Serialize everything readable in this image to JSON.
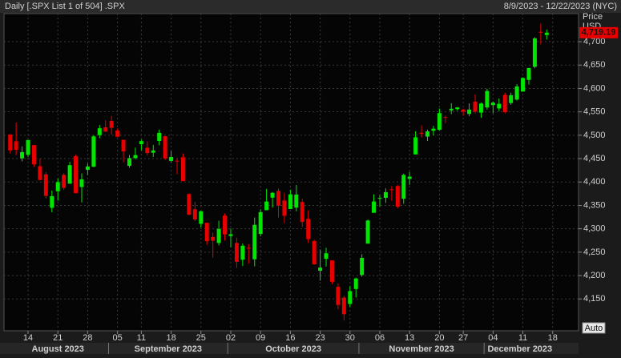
{
  "chart_data": {
    "type": "candlestick",
    "title": "Daily [.SPX List 1 of 504] .SPX",
    "subtitle": "8/9/2023 - 12/22/2023 (NYC)",
    "y_axis_label": "Price",
    "y_axis_unit": "USD",
    "button": "Auto",
    "up_color": "#00e600",
    "down_color": "#e60000",
    "grid": true,
    "ylim": [
      4082,
      4760
    ],
    "yticks": [
      {
        "value": 4150,
        "label": "4,150"
      },
      {
        "value": 4200,
        "label": "4,200"
      },
      {
        "value": 4250,
        "label": "4,250"
      },
      {
        "value": 4300,
        "label": "4,300"
      },
      {
        "value": 4350,
        "label": "4,350"
      },
      {
        "value": 4400,
        "label": "4,400"
      },
      {
        "value": 4450,
        "label": "4,450"
      },
      {
        "value": 4500,
        "label": "4,500"
      },
      {
        "value": 4550,
        "label": "4,550"
      },
      {
        "value": 4600,
        "label": "4,600"
      },
      {
        "value": 4650,
        "label": "4,650"
      },
      {
        "value": 4700,
        "label": "4,700"
      }
    ],
    "last_price": {
      "value": 4719.19,
      "label": "4,719.19"
    },
    "months": [
      {
        "label": "August 2023",
        "days": [
          null,
          null,
          null,
          "14",
          null,
          null,
          null,
          null,
          "21",
          null,
          null,
          null,
          null,
          "28",
          null,
          null,
          null
        ]
      },
      {
        "label": "September 2023",
        "days": [
          null,
          "05",
          null,
          null,
          null,
          "11",
          null,
          null,
          null,
          null,
          "18",
          null,
          null,
          null,
          null,
          "25",
          null,
          null,
          null,
          null
        ]
      },
      {
        "label": "October 2023",
        "days": [
          "02",
          null,
          null,
          null,
          null,
          "09",
          null,
          null,
          null,
          null,
          "16",
          null,
          null,
          null,
          null,
          "23",
          null,
          null,
          null,
          null,
          "30",
          null
        ]
      },
      {
        "label": "November 2023",
        "days": [
          null,
          null,
          null,
          "06",
          null,
          null,
          null,
          null,
          "13",
          null,
          null,
          null,
          null,
          "20",
          null,
          null,
          null,
          "27",
          null,
          null,
          null
        ]
      },
      {
        "label": "December 2023",
        "days": [
          null,
          "04",
          null,
          null,
          null,
          null,
          "11",
          null,
          null,
          null,
          null,
          "18"
        ]
      }
    ],
    "open": [
      4501.57,
      4487.16,
      4450.69,
      4458.13,
      4478.87,
      4433.79,
      4416.32,
      4344.88,
      4380.28,
      4415.33,
      4396.44,
      4455.16,
      4389.38,
      4426.03,
      4432.75,
      4500.34,
      4517.01,
      4530.6,
      4510.06,
      4490.35,
      4434.55,
      4451.3,
      4480.98,
      4473.27,
      4462.65,
      4487.78,
      4497.98,
      4445.13,
      4445.41,
      4452.81,
      4374.36,
      4341.74,
      4310.62,
      4312.88,
      4282.63,
      4269.65,
      4328.18,
      4284.52,
      4269.75,
      4233.83,
      4259.31,
      4234.79,
      4289.02,
      4339.75,
      4366.59,
      4380.94,
      4360.49,
      4342.37,
      4345.23,
      4357.35,
      4321.36,
      4273.85,
      4210.4,
      4235.79,
      4232.42,
      4175.99,
      4152.93,
      4139.39,
      4171.33,
      4201.27,
      4268.26,
      4334.23,
      4364.27,
      4366.21,
      4384.37,
      4391.41,
      4364.15,
      4406.66,
      4458.97,
      4505.3,
      4497.08,
      4509.55,
      4511.7,
      4538.77,
      4553.04,
      4555.84,
      4554.86,
      4545.55,
      4571.84,
      4548.47,
      4559.43,
      4564.37,
      4557.25,
      4586.23,
      4568.84,
      4576.2,
      4593.39,
      4618.3,
      4646.2,
      4721.04,
      4714.23,
      null
    ],
    "high": [
      4502.44,
      4527.37,
      4476.23,
      4490.33,
      4478.87,
      4449.95,
      4421.17,
      4381.82,
      4407.55,
      4418.59,
      4443.18,
      4458.3,
      4418.46,
      4439.56,
      4500.14,
      4521.65,
      4532.26,
      4541.25,
      4514.29,
      4490.35,
      4457.81,
      4473.53,
      4490.77,
      4487.11,
      4479.39,
      4511.99,
      4497.98,
      4466.36,
      4449.85,
      4461.03,
      4375.7,
      4357.4,
      4338.51,
      4313.01,
      4292.07,
      4317.27,
      4333.15,
      4300.58,
      4281.15,
      4268.5,
      4267.13,
      4324.1,
      4341.73,
      4385.46,
      4378.64,
      4385.85,
      4377.1,
      4383.33,
      4393.57,
      4364.2,
      4339.54,
      4276.56,
      4255.84,
      4259.38,
      4232.42,
      4183.6,
      4156.7,
      4177.47,
      4195.55,
      4245.64,
      4319.72,
      4373.62,
      4372.21,
      4386.26,
      4391.2,
      4393.4,
      4418.03,
      4421.76,
      4508.67,
      4521.17,
      4511.99,
      4520.12,
      4557.11,
      4542.14,
      4568.43,
      4560.31,
      4557.09,
      4568.14,
      4587.64,
      4569.89,
      4599.39,
      4572.37,
      4578.56,
      4590.74,
      4590.92,
      4609.23,
      4623.71,
      4643.93,
      4709.69,
      4738.57,
      4725.53,
      null
    ],
    "low": [
      4461.33,
      4457.92,
      4443.98,
      4453.44,
      4432.19,
      4403.55,
      4364.83,
      4335.31,
      4360.3,
      4382.77,
      4396.44,
      4375.55,
      4356.29,
      4414.98,
      4431.68,
      4493.59,
      4507.39,
      4501.35,
      4496.01,
      4442.38,
      4430.46,
      4448.38,
      4467.89,
      4456.83,
      4453.52,
      4478.69,
      4447.21,
      4442.11,
      4416.61,
      4401.38,
      4329.17,
      4316.49,
      4302.7,
      4265.98,
      4238.63,
      4264.38,
      4274.86,
      4260.21,
      4216.45,
      4220.48,
      4225.91,
      4219.55,
      4283.79,
      4339.64,
      4345.34,
      4324.1,
      4311.97,
      4342.37,
      4337.54,
      4303.84,
      4269.69,
      4223.03,
      4189.22,
      4219.43,
      4181.42,
      4127.9,
      4103.78,
      4132.94,
      4153.12,
      4197.74,
      4268.26,
      4334.23,
      4347.53,
      4355.41,
      4359.76,
      4343.94,
      4353.34,
      4393.82,
      4458.97,
      4495.31,
      4487.83,
      4499.66,
      4510.36,
      4525.51,
      4545.05,
      4552.8,
      4541.61,
      4540.51,
      4547.15,
      4537.24,
      4554.71,
      4546.72,
      4551.68,
      4546.5,
      4565.22,
      4574.06,
      4593.39,
      4608.09,
      4643.23,
      4694.34,
      4704.69,
      null
    ],
    "close": [
      4467.71,
      4468.83,
      4464.05,
      4489.72,
      4437.86,
      4404.33,
      4370.36,
      4369.71,
      4399.77,
      4387.55,
      4436.01,
      4376.31,
      4405.71,
      4433.31,
      4497.63,
      4514.87,
      4507.66,
      4515.77,
      4496.83,
      4465.48,
      4451.14,
      4457.49,
      4487.46,
      4461.9,
      4467.44,
      4505.1,
      4450.32,
      4453.53,
      4443.95,
      4402.2,
      4330.0,
      4320.06,
      4337.44,
      4273.53,
      4274.51,
      4299.7,
      4288.05,
      4288.39,
      4229.45,
      4263.75,
      4258.19,
      4308.5,
      4335.66,
      4358.24,
      4376.95,
      4349.61,
      4327.78,
      4373.63,
      4373.2,
      4314.6,
      4278.0,
      4224.16,
      4217.04,
      4247.68,
      4186.77,
      4137.23,
      4117.37,
      4166.82,
      4193.8,
      4237.86,
      4317.78,
      4358.34,
      4365.98,
      4378.38,
      4382.78,
      4347.35,
      4415.24,
      4411.55,
      4495.7,
      4502.88,
      4508.24,
      4514.02,
      4547.38,
      4538.19,
      4556.62,
      4559.34,
      4550.43,
      4554.89,
      4550.58,
      4567.8,
      4594.63,
      4569.78,
      4567.18,
      4549.34,
      4585.59,
      4604.37,
      4622.44,
      4643.7,
      4707.09,
      4719.55,
      4719.19,
      null
    ]
  }
}
